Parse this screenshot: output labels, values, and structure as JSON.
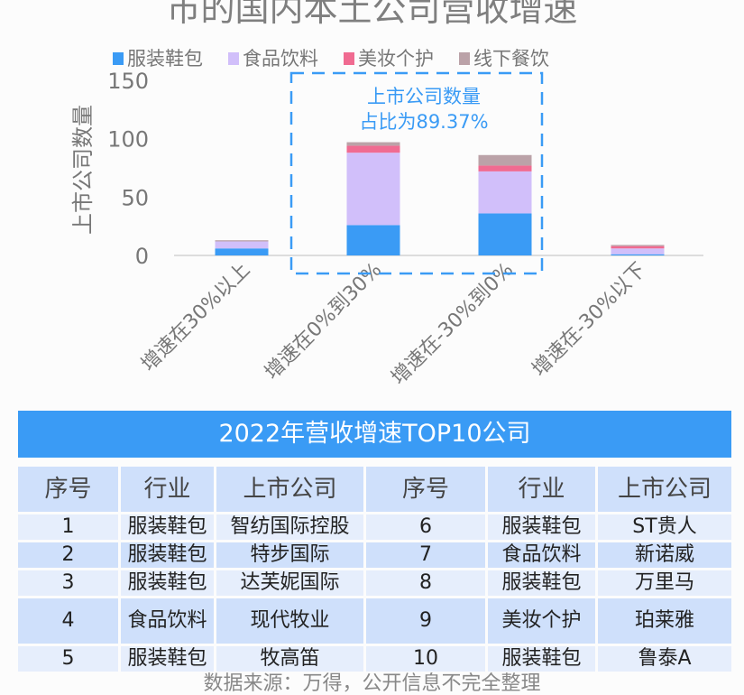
{
  "chart_data": {
    "type": "bar",
    "stacked": true,
    "title": "市的国内本土公司营收增速",
    "ylabel": "上市公司数量",
    "ylim": [
      0,
      150
    ],
    "yticks": [
      0,
      50,
      100,
      150
    ],
    "categories": [
      "增速在30%以上",
      "增速在0%到30%",
      "增速在-30%到0%",
      "增速在-30%以下"
    ],
    "series": [
      {
        "name": "服装鞋包",
        "color": "#3a9bf5",
        "values": [
          6,
          26,
          36,
          1
        ]
      },
      {
        "name": "食品饮料",
        "color": "#d1bffa",
        "values": [
          6,
          62,
          36,
          5
        ]
      },
      {
        "name": "美妆个护",
        "color": "#f06b91",
        "values": [
          0,
          6,
          5,
          2
        ]
      },
      {
        "name": "线下餐饮",
        "color": "#bba2a8",
        "values": [
          1,
          3,
          9,
          1
        ]
      }
    ],
    "annotation": [
      "上市公司数量",
      "占比为89.37%"
    ],
    "legend_position": "top"
  },
  "table": {
    "title": "2022年营收增速TOP10公司",
    "headers": [
      "序号",
      "行业",
      "上市公司",
      "序号",
      "行业",
      "上市公司"
    ],
    "rows": [
      [
        "1",
        "服装鞋包",
        "智纺国际控股",
        "6",
        "服装鞋包",
        "ST贵人"
      ],
      [
        "2",
        "服装鞋包",
        "特步国际",
        "7",
        "食品饮料",
        "新诺威"
      ],
      [
        "3",
        "服装鞋包",
        "达芙妮国际",
        "8",
        "服装鞋包",
        "万里马"
      ],
      [
        "4",
        "食品饮料",
        "现代牧业",
        "9",
        "美妆个护",
        "珀莱雅"
      ],
      [
        "5",
        "服装鞋包",
        "牧高笛",
        "10",
        "服装鞋包",
        "鲁泰A"
      ]
    ]
  },
  "footer": "数据来源：万得，公开信息不完全整理"
}
